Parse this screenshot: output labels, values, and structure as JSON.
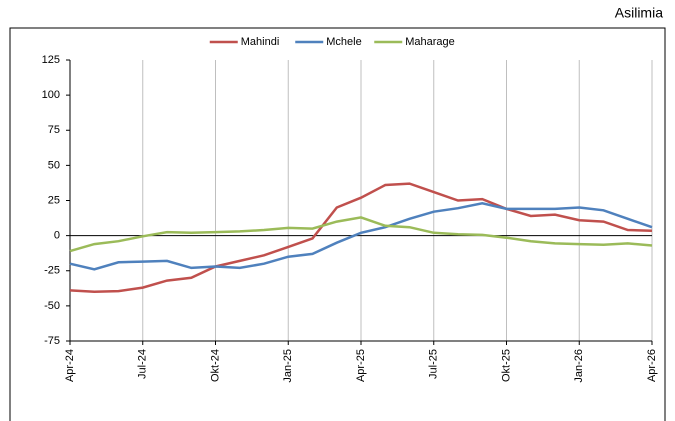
{
  "chart_data": {
    "type": "line",
    "axis_label": "Asilimia",
    "categories": [
      "Apr-24",
      null,
      null,
      "Jul-24",
      null,
      null,
      "Okt-24",
      null,
      null,
      "Jan-25",
      null,
      null,
      "Apr-25",
      null,
      null,
      "Jul-25",
      null,
      null,
      "Okt-25",
      null,
      null,
      "Jan-26",
      null,
      null,
      "Apr-26"
    ],
    "series": [
      {
        "name": "Mahindi",
        "color": "#c0504d",
        "values": [
          -39,
          -40,
          -39.5,
          -37,
          -32,
          -30,
          -22,
          -18,
          -14,
          -8,
          -2,
          20,
          27,
          36,
          37,
          31,
          25,
          26,
          19,
          14,
          15,
          11,
          10,
          4,
          3.5
        ]
      },
      {
        "name": "Mchele",
        "color": "#4f81bd",
        "values": [
          -20,
          -24,
          -19,
          -18.5,
          -18,
          -23,
          -22,
          -23,
          -20,
          -15,
          -13,
          -5,
          2,
          6,
          12,
          17,
          19.5,
          23,
          19,
          19,
          19,
          20,
          18,
          12,
          6
        ]
      },
      {
        "name": "Maharage",
        "color": "#9bbb59",
        "values": [
          -11,
          -6,
          -4,
          -0.5,
          2.5,
          2,
          2.5,
          3,
          4,
          5.5,
          5,
          10,
          13,
          7,
          6,
          2,
          1,
          0.5,
          -1.5,
          -4,
          -5.5,
          -6,
          -6.5,
          -5.5,
          -7
        ]
      }
    ],
    "ylim": [
      -75,
      125
    ],
    "yticks": [
      -75,
      -50,
      -25,
      0,
      25,
      50,
      75,
      100,
      125
    ],
    "x_grid": true,
    "legend": "top"
  }
}
